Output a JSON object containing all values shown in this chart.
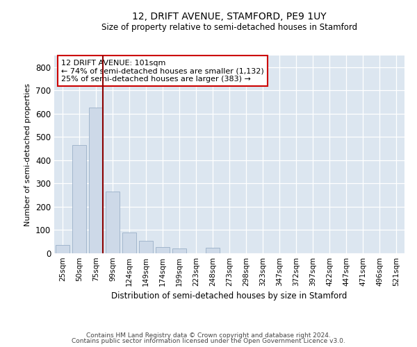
{
  "title": "12, DRIFT AVENUE, STAMFORD, PE9 1UY",
  "subtitle": "Size of property relative to semi-detached houses in Stamford",
  "xlabel": "Distribution of semi-detached houses by size in Stamford",
  "ylabel": "Number of semi-detached properties",
  "footer_line1": "Contains HM Land Registry data © Crown copyright and database right 2024.",
  "footer_line2": "Contains public sector information licensed under the Open Government Licence v3.0.",
  "annotation_line1": "12 DRIFT AVENUE: 101sqm",
  "annotation_line2": "← 74% of semi-detached houses are smaller (1,132)",
  "annotation_line3": "25% of semi-detached houses are larger (383) →",
  "bar_color": "#cdd9e8",
  "bar_edge_color": "#9ab0c8",
  "marker_line_color": "#8b0000",
  "categories": [
    "25sqm",
    "50sqm",
    "75sqm",
    "99sqm",
    "124sqm",
    "149sqm",
    "174sqm",
    "199sqm",
    "223sqm",
    "248sqm",
    "273sqm",
    "298sqm",
    "323sqm",
    "347sqm",
    "372sqm",
    "397sqm",
    "422sqm",
    "447sqm",
    "471sqm",
    "496sqm",
    "521sqm"
  ],
  "values": [
    35,
    465,
    625,
    265,
    90,
    55,
    28,
    20,
    0,
    25,
    0,
    0,
    0,
    0,
    0,
    0,
    0,
    0,
    0,
    0,
    0
  ],
  "ylim": [
    0,
    850
  ],
  "yticks": [
    0,
    100,
    200,
    300,
    400,
    500,
    600,
    700,
    800
  ],
  "marker_bar_index": 2,
  "figsize": [
    6.0,
    5.0
  ],
  "dpi": 100
}
